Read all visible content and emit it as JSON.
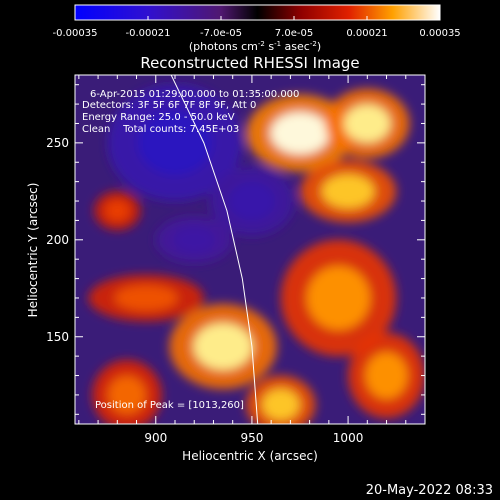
{
  "colorbar": {
    "ticks": [
      "-0.00035",
      "-0.00021",
      "-7.0e-05",
      "7.0e-05",
      "0.00021",
      "0.00035"
    ],
    "units_main": "(photons cm",
    "units_exp1": "-2",
    "units_mid": " s",
    "units_exp2": "-1",
    "units_end": " asec",
    "units_exp3": "-2",
    "units_close": ")",
    "range": [
      -0.00035,
      0.00035
    ]
  },
  "chart_data": {
    "type": "heatmap",
    "title": "Reconstructed RHESSI Image",
    "xlabel": "Heliocentric X (arcsec)",
    "ylabel": "Heliocentric Y (arcsec)",
    "xlim": [
      858,
      1040
    ],
    "ylim": [
      105,
      285
    ],
    "x_ticks": [
      900,
      950,
      1000
    ],
    "y_ticks": [
      150,
      200,
      250
    ],
    "colormap": "blue-purple-red-yellow-white",
    "limb_arc": [
      [
        908,
        285
      ],
      [
        925,
        250
      ],
      [
        937,
        215
      ],
      [
        945,
        180
      ],
      [
        950,
        145
      ],
      [
        953,
        105
      ]
    ],
    "hot_regions": [
      {
        "x": 975,
        "y": 255,
        "rx": 28,
        "ry": 20,
        "level": 1.0
      },
      {
        "x": 1010,
        "y": 260,
        "rx": 22,
        "ry": 18,
        "level": 0.95
      },
      {
        "x": 1000,
        "y": 225,
        "rx": 25,
        "ry": 16,
        "level": 0.85
      },
      {
        "x": 995,
        "y": 170,
        "rx": 30,
        "ry": 30,
        "level": 0.75
      },
      {
        "x": 1020,
        "y": 130,
        "rx": 20,
        "ry": 22,
        "level": 0.75
      },
      {
        "x": 935,
        "y": 145,
        "rx": 28,
        "ry": 22,
        "level": 0.95
      },
      {
        "x": 965,
        "y": 115,
        "rx": 18,
        "ry": 15,
        "level": 0.85
      },
      {
        "x": 895,
        "y": 170,
        "rx": 30,
        "ry": 12,
        "level": 0.6
      },
      {
        "x": 885,
        "y": 120,
        "rx": 18,
        "ry": 18,
        "level": 0.65
      },
      {
        "x": 880,
        "y": 215,
        "rx": 12,
        "ry": 10,
        "level": 0.55
      }
    ],
    "cold_regions": [
      {
        "x": 910,
        "y": 250,
        "rx": 35,
        "ry": 30,
        "level": -0.9
      },
      {
        "x": 950,
        "y": 220,
        "rx": 22,
        "ry": 18,
        "level": -0.6
      },
      {
        "x": 920,
        "y": 200,
        "rx": 20,
        "ry": 12,
        "level": -0.5
      }
    ]
  },
  "annotations": {
    "line1": "6-Apr-2015 01:29:00.000 to 01:35:00.000",
    "line2": "Detectors: 3F 5F 6F 7F 8F 9F, Att 0",
    "line3": "Energy Range: 25.0 - 50.0 keV",
    "line4": "Clean    Total counts: 7.45E+03",
    "peak": "Position of Peak = [1013,260]"
  },
  "footer": {
    "date": "20-May-2022 08:33"
  }
}
